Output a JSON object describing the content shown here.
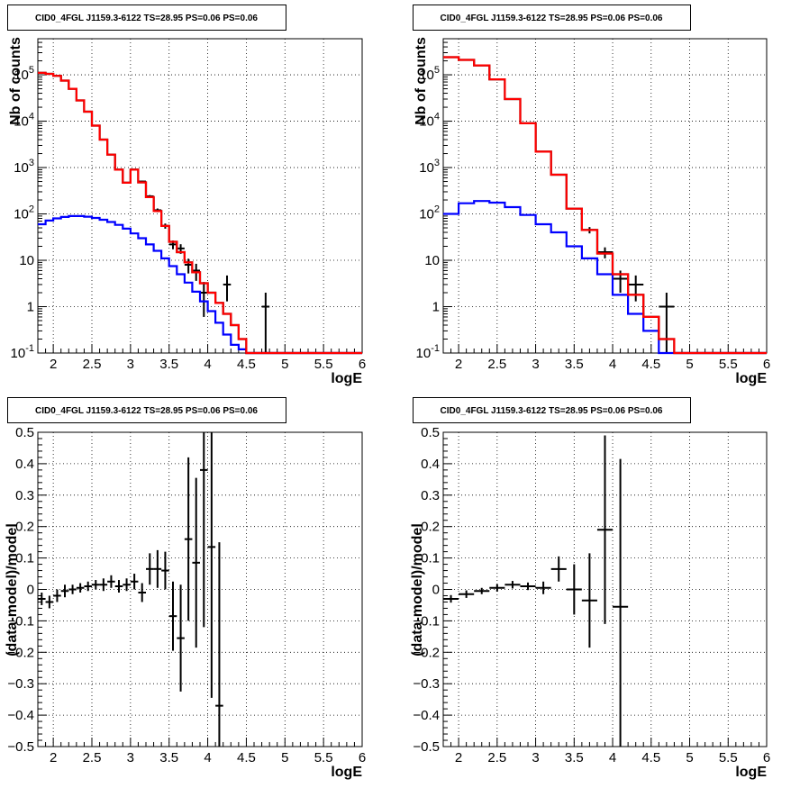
{
  "chart_data": [
    {
      "type": "line",
      "title": "CID0_4FGL J1159.3-6122 TS=28.95 PS=0.06 PS=0.06",
      "xlabel": "logE",
      "ylabel": "Nb of counts",
      "xlim": [
        1.8,
        6.0
      ],
      "ylim": [
        0.1,
        600000
      ],
      "yscale": "log",
      "grid": true,
      "bin_width": 0.1,
      "x_tick_labels": [
        "2",
        "2.5",
        "3",
        "3.5",
        "4",
        "4.5",
        "5",
        "5.5",
        "6"
      ],
      "y_tick_labels": [
        "10^-1",
        "1",
        "10",
        "10^2",
        "10^3",
        "10^4",
        "10^5"
      ],
      "series": [
        {
          "color": "#000000",
          "style": "points",
          "x": [
            3.05,
            3.15,
            3.25,
            3.35,
            3.45,
            3.55,
            3.65,
            3.75,
            3.85,
            3.95,
            4.25,
            4.75
          ],
          "y": [
            900,
            500,
            240,
            120,
            55,
            22,
            18,
            8,
            6,
            2,
            3,
            1
          ],
          "yerr": [
            30,
            22,
            15,
            11,
            7,
            4.7,
            4.2,
            2.8,
            2.4,
            1.4,
            1.7,
            1
          ]
        },
        {
          "color": "#0000ff",
          "style": "step",
          "x": [
            1.85,
            1.95,
            2.05,
            2.15,
            2.25,
            2.35,
            2.45,
            2.55,
            2.65,
            2.75,
            2.85,
            2.95,
            3.05,
            3.15,
            3.25,
            3.35,
            3.45,
            3.55,
            3.65,
            3.75,
            3.85,
            3.95,
            4.05,
            4.15,
            4.25,
            4.35,
            4.45,
            4.55,
            4.65,
            4.75,
            4.85,
            4.95,
            5.05,
            5.15,
            5.25,
            5.35,
            5.45,
            5.55,
            5.65,
            5.75,
            5.85,
            5.95
          ],
          "y": [
            60,
            72,
            80,
            86,
            90,
            90,
            87,
            82,
            75,
            67,
            58,
            48,
            38,
            30,
            22,
            16,
            11,
            7.5,
            5,
            3.3,
            2.1,
            1.3,
            0.8,
            0.45,
            0.25,
            0.15,
            0.12,
            0.1,
            0.1,
            0.1,
            0.1,
            0.1,
            0.1,
            0.1,
            0.1,
            0.1,
            0.1,
            0.1,
            0.1,
            0.1,
            0.1,
            0.1
          ]
        },
        {
          "color": "#000000",
          "style": "step",
          "x": [
            1.85,
            1.95,
            2.05,
            2.15,
            2.25,
            2.35,
            2.45,
            2.55,
            2.65,
            2.75,
            2.85,
            2.95,
            3.05,
            3.15,
            3.25,
            3.35,
            3.45,
            3.55,
            3.65,
            3.75,
            3.85,
            3.95,
            4.05,
            4.15,
            4.25,
            4.35,
            4.45,
            4.55,
            4.65,
            4.75,
            4.85,
            4.95,
            5.05,
            5.15,
            5.25,
            5.35,
            5.45,
            5.55,
            5.65,
            5.75,
            5.85,
            5.95
          ],
          "y": [
            110000,
            105000,
            95000,
            75000,
            50000,
            28000,
            16000,
            8000,
            4000,
            1900,
            900,
            470,
            900,
            480,
            230,
            115,
            55,
            25,
            15,
            9,
            5.5,
            3.2,
            2,
            1.2,
            0.7,
            0.4,
            0.2,
            0.1,
            0.1,
            0.1,
            0.1,
            0.1,
            0.1,
            0.1,
            0.1,
            0.1,
            0.1,
            0.1,
            0.1,
            0.1,
            0.1,
            0.1
          ]
        },
        {
          "color": "#ff0000",
          "style": "step",
          "x": [
            1.85,
            1.95,
            2.05,
            2.15,
            2.25,
            2.35,
            2.45,
            2.55,
            2.65,
            2.75,
            2.85,
            2.95,
            3.05,
            3.15,
            3.25,
            3.35,
            3.45,
            3.55,
            3.65,
            3.75,
            3.85,
            3.95,
            4.05,
            4.15,
            4.25,
            4.35,
            4.45,
            4.55,
            4.65,
            4.75,
            4.85,
            4.95,
            5.05,
            5.15,
            5.25,
            5.35,
            5.45,
            5.55,
            5.65,
            5.75,
            5.85,
            5.95
          ],
          "y": [
            110000,
            105000,
            95000,
            75000,
            50000,
            28000,
            16000,
            8000,
            4000,
            1900,
            900,
            470,
            900,
            480,
            230,
            115,
            55,
            25,
            15,
            9,
            5.5,
            3.2,
            2,
            1.2,
            0.7,
            0.4,
            0.2,
            0.1,
            0.1,
            0.1,
            0.1,
            0.1,
            0.1,
            0.1,
            0.1,
            0.1,
            0.1,
            0.1,
            0.1,
            0.1,
            0.1,
            0.1
          ]
        }
      ]
    },
    {
      "type": "line",
      "title": "CID0_4FGL J1159.3-6122 TS=28.95 PS=0.06 PS=0.06",
      "xlabel": "logE",
      "ylabel": "Nb of counts",
      "xlim": [
        1.8,
        6.0
      ],
      "ylim": [
        0.1,
        600000
      ],
      "yscale": "log",
      "grid": true,
      "bin_width": 0.2,
      "x_tick_labels": [
        "2",
        "2.5",
        "3",
        "3.5",
        "4",
        "4.5",
        "5",
        "5.5",
        "6"
      ],
      "y_tick_labels": [
        "10^-1",
        "1",
        "10",
        "10^2",
        "10^3",
        "10^4",
        "10^5"
      ],
      "series": [
        {
          "color": "#000000",
          "style": "points",
          "x": [
            3.7,
            3.9,
            4.1,
            4.3,
            4.7
          ],
          "y": [
            45,
            15,
            4,
            3,
            1
          ],
          "yerr": [
            7,
            4,
            2,
            1.7,
            1
          ]
        },
        {
          "color": "#0000ff",
          "style": "step",
          "x": [
            1.9,
            2.1,
            2.3,
            2.5,
            2.7,
            2.9,
            3.1,
            3.3,
            3.5,
            3.7,
            3.9,
            4.1,
            4.3,
            4.5,
            4.7,
            4.9,
            5.1,
            5.3,
            5.5,
            5.7,
            5.9
          ],
          "y": [
            100,
            170,
            190,
            175,
            140,
            95,
            60,
            40,
            20,
            11,
            5,
            1.8,
            0.7,
            0.3,
            0.1,
            0.1,
            0.1,
            0.1,
            0.1,
            0.1,
            0.1
          ]
        },
        {
          "color": "#000000",
          "style": "step",
          "x": [
            1.9,
            2.1,
            2.3,
            2.5,
            2.7,
            2.9,
            3.1,
            3.3,
            3.5,
            3.7,
            3.9,
            4.1,
            4.3,
            4.5,
            4.7,
            4.9,
            5.1,
            5.3,
            5.5,
            5.7,
            5.9
          ],
          "y": [
            240000,
            210000,
            160000,
            80000,
            30000,
            9000,
            2200,
            700,
            130,
            45,
            14,
            5,
            1.8,
            0.6,
            0.2,
            0.1,
            0.1,
            0.1,
            0.1,
            0.1,
            0.1
          ]
        },
        {
          "color": "#ff0000",
          "style": "step",
          "x": [
            1.9,
            2.1,
            2.3,
            2.5,
            2.7,
            2.9,
            3.1,
            3.3,
            3.5,
            3.7,
            3.9,
            4.1,
            4.3,
            4.5,
            4.7,
            4.9,
            5.1,
            5.3,
            5.5,
            5.7,
            5.9
          ],
          "y": [
            240000,
            210000,
            160000,
            80000,
            30000,
            9000,
            2200,
            700,
            130,
            45,
            14,
            5,
            1.8,
            0.6,
            0.2,
            0.1,
            0.1,
            0.1,
            0.1,
            0.1,
            0.1
          ]
        }
      ]
    },
    {
      "type": "scatter",
      "title": "CID0_4FGL J1159.3-6122 TS=28.95 PS=0.06 PS=0.06",
      "xlabel": "logE",
      "ylabel": "(data-model)/model",
      "xlim": [
        1.8,
        6.0
      ],
      "ylim": [
        -0.5,
        0.5
      ],
      "yscale": "linear",
      "grid": true,
      "bin_width": 0.1,
      "x_tick_labels": [
        "2",
        "2.5",
        "3",
        "3.5",
        "4",
        "4.5",
        "5",
        "5.5",
        "6"
      ],
      "y_tick_labels": [
        "−0.5",
        "−0.4",
        "−0.3",
        "−0.2",
        "−0.1",
        "0",
        "0.1",
        "0.2",
        "0.3",
        "0.4",
        "0.5"
      ],
      "series": [
        {
          "color": "#000000",
          "style": "points",
          "x": [
            1.85,
            1.95,
            2.05,
            2.15,
            2.25,
            2.35,
            2.45,
            2.55,
            2.65,
            2.75,
            2.85,
            2.95,
            3.05,
            3.15,
            3.25,
            3.35,
            3.45,
            3.55,
            3.65,
            3.75,
            3.85,
            3.95,
            4.05,
            4.15
          ],
          "y": [
            -0.03,
            -0.04,
            -0.02,
            -0.005,
            0.0,
            0.005,
            0.01,
            0.015,
            0.015,
            0.025,
            0.01,
            0.015,
            0.025,
            -0.01,
            0.065,
            0.065,
            0.06,
            -0.085,
            -0.155,
            0.16,
            0.085,
            0.38,
            0.135,
            -0.37
          ],
          "yerr": [
            0.02,
            0.02,
            0.02,
            0.02,
            0.015,
            0.015,
            0.015,
            0.015,
            0.02,
            0.02,
            0.02,
            0.02,
            0.025,
            0.03,
            0.05,
            0.06,
            0.06,
            0.11,
            0.17,
            0.26,
            0.27,
            0.5,
            0.48,
            0.52
          ]
        }
      ]
    },
    {
      "type": "scatter",
      "title": "CID0_4FGL J1159.3-6122 TS=28.95 PS=0.06 PS=0.06",
      "xlabel": "logE",
      "ylabel": "(data-model)/model",
      "xlim": [
        1.8,
        6.0
      ],
      "ylim": [
        -0.5,
        0.5
      ],
      "yscale": "linear",
      "grid": true,
      "bin_width": 0.2,
      "x_tick_labels": [
        "2",
        "2.5",
        "3",
        "3.5",
        "4",
        "4.5",
        "5",
        "5.5",
        "6"
      ],
      "y_tick_labels": [
        "−0.5",
        "−0.4",
        "−0.3",
        "−0.2",
        "−0.1",
        "0",
        "0.1",
        "0.2",
        "0.3",
        "0.4",
        "0.5"
      ],
      "series": [
        {
          "color": "#000000",
          "style": "points",
          "x": [
            1.9,
            2.1,
            2.3,
            2.5,
            2.7,
            2.9,
            3.1,
            3.3,
            3.5,
            3.7,
            3.9,
            4.1
          ],
          "y": [
            -0.03,
            -0.015,
            -0.005,
            0.005,
            0.015,
            0.01,
            0.005,
            0.065,
            0.0,
            -0.035,
            0.19,
            -0.055
          ],
          "yerr": [
            0.012,
            0.012,
            0.01,
            0.012,
            0.012,
            0.012,
            0.02,
            0.04,
            0.08,
            0.15,
            0.3,
            0.47
          ]
        }
      ]
    }
  ]
}
